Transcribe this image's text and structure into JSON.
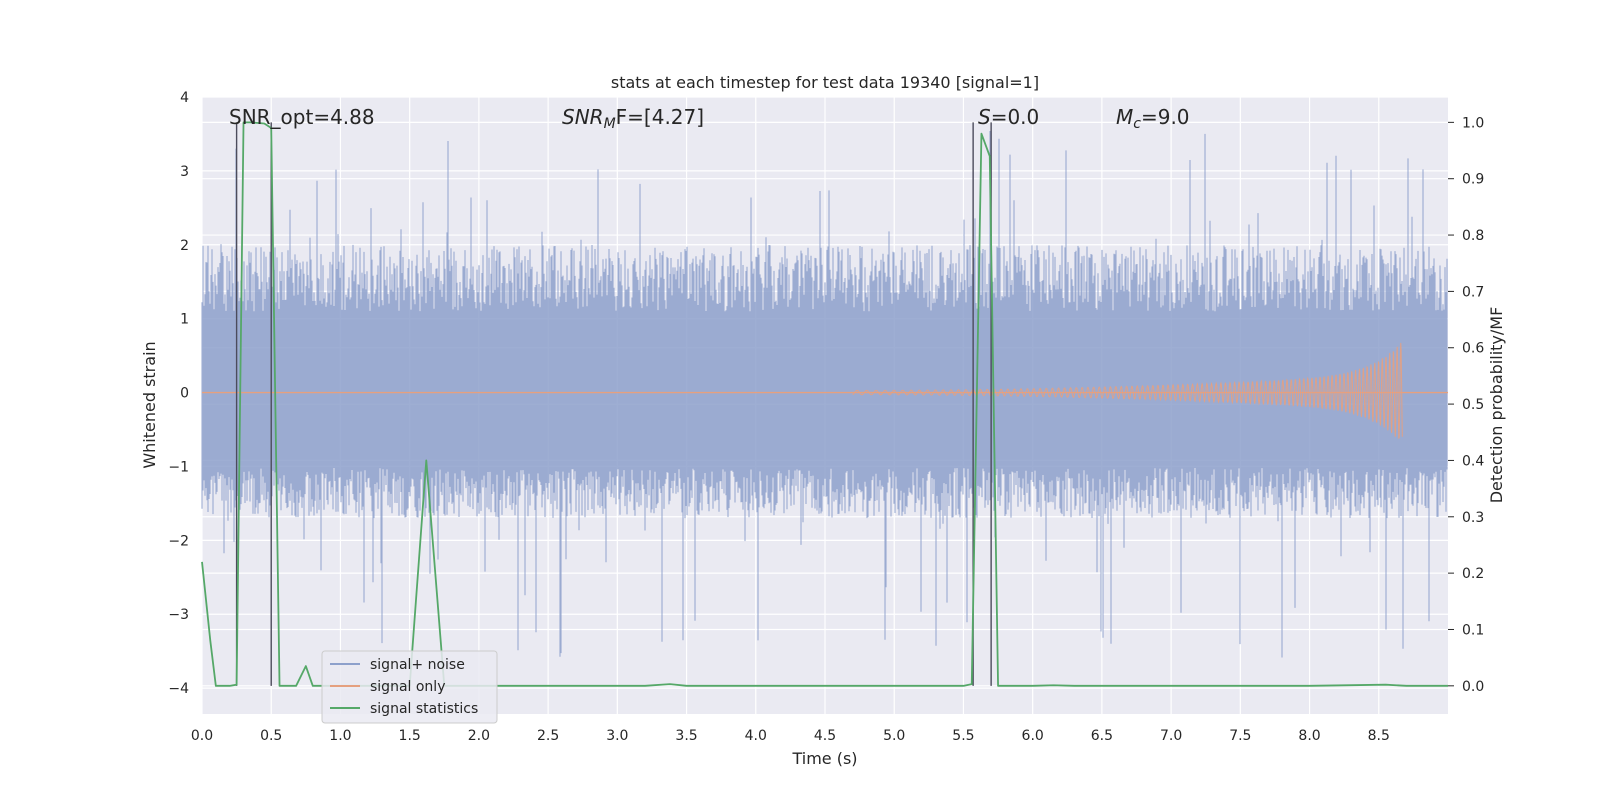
{
  "chart_data": {
    "type": "line",
    "title": "stats at each timestep for test data 19340 [signal=1]",
    "xlabel": "Time (s)",
    "ylabel_left": "Whitened strain",
    "ylabel_right": "Detection probability/MF",
    "xlim": [
      0,
      9.0
    ],
    "ylim_left": [
      -4.35,
      4.0
    ],
    "ylim_right": [
      -0.05,
      1.045
    ],
    "x_ticks": [
      "0.0",
      "0.5",
      "1.0",
      "1.5",
      "2.0",
      "2.5",
      "3.0",
      "3.5",
      "4.0",
      "4.5",
      "5.0",
      "5.5",
      "6.0",
      "6.5",
      "7.0",
      "7.5",
      "8.0",
      "8.5"
    ],
    "y_left_ticks": [
      "−4",
      "−3",
      "−2",
      "−1",
      "0",
      "1",
      "2",
      "3",
      "4"
    ],
    "y_right_ticks": [
      "0.0",
      "0.1",
      "0.2",
      "0.3",
      "0.4",
      "0.5",
      "0.6",
      "0.7",
      "0.8",
      "0.9",
      "1.0"
    ],
    "grid": true,
    "legend_position": "lower-left",
    "annotations": {
      "snr_opt": "SNR_opt=4.88",
      "snr_mf_main": "SNR",
      "snr_mf_sub": "M",
      "snr_mf_rest": "F=[4.27]",
      "s_main": "S",
      "s_rest": "=0.0",
      "mc_main": "M",
      "mc_sub": "c",
      "mc_rest": "=9.0"
    },
    "vertical_markers": [
      0.25,
      0.5,
      5.57,
      5.7
    ],
    "series": [
      {
        "name": "signal+ noise",
        "color": "#8da0cb",
        "axis": "left",
        "style": "noise band",
        "typical_range": [
          -1.7,
          2.0
        ],
        "extreme_range": [
          -3.6,
          3.6
        ]
      },
      {
        "name": "signal only",
        "color": "#e5a07f",
        "axis": "left",
        "style": "chirp",
        "onset_x": 4.7,
        "end_x": 8.67,
        "peak_amplitude": 0.7
      },
      {
        "name": "signal statistics",
        "color": "#55a868",
        "axis": "right",
        "x": [
          0.0,
          0.06,
          0.1,
          0.2,
          0.25,
          0.3,
          0.35,
          0.45,
          0.5,
          0.56,
          0.62,
          0.68,
          0.75,
          0.8,
          0.85,
          1.5,
          1.62,
          1.75,
          1.85,
          2.5,
          3.2,
          3.38,
          3.5,
          4.5,
          5.0,
          5.5,
          5.56,
          5.63,
          5.69,
          5.75,
          6.0,
          6.15,
          6.3,
          7.0,
          8.0,
          8.55,
          8.7,
          9.0
        ],
        "y": [
          0.22,
          0.08,
          0.0,
          0.0,
          0.002,
          1.0,
          1.0,
          0.998,
          0.99,
          0.0,
          0.0,
          0.0,
          0.035,
          0.0,
          0.0,
          0.0,
          0.4,
          0.0,
          0.0,
          0.0,
          0.0,
          0.003,
          0.0,
          0.0,
          0.0,
          0.0,
          0.003,
          0.98,
          0.94,
          0.0,
          0.0,
          0.001,
          0.0,
          0.0,
          0.0,
          0.002,
          0.0,
          0.0
        ]
      }
    ]
  }
}
